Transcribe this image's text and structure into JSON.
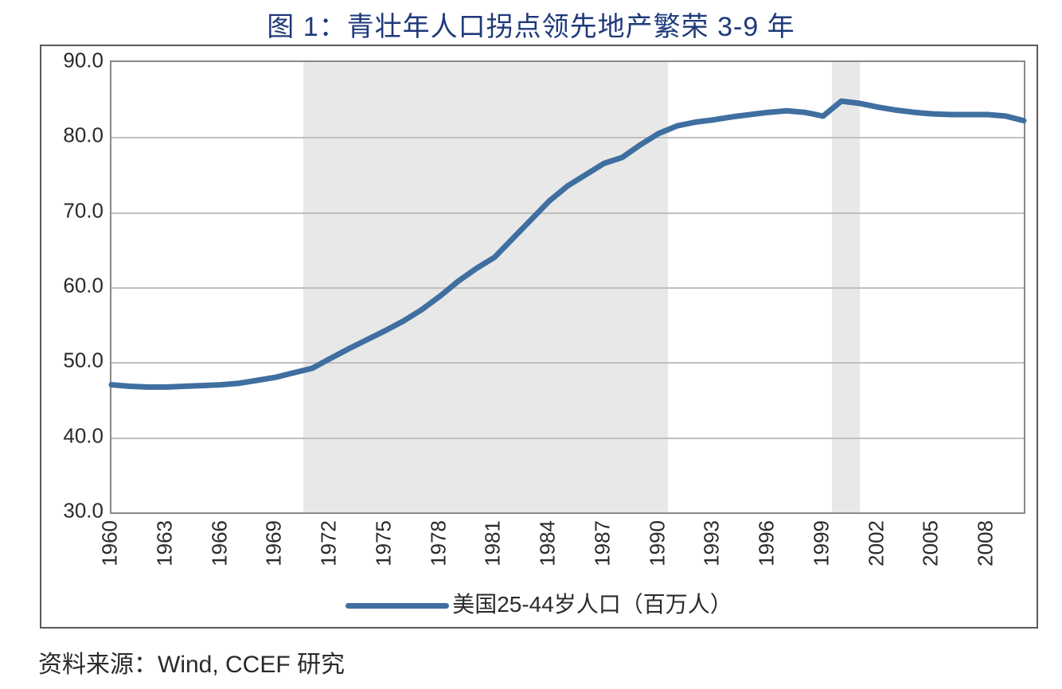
{
  "title": "图 1：青壮年人口拐点领先地产繁荣 3-9 年",
  "source": "资料来源：Wind, CCEF 研究",
  "chart": {
    "type": "line",
    "legend_label": "美国25-44岁人口（百万人）",
    "line_color": "#3f6fa0",
    "line_width": 7,
    "background_color": "#ffffff",
    "grid_color": "#bfbfbf",
    "frame_color": "#888888",
    "outer_frame_color": "#5a5a5a",
    "band_color": "#e6e6e6",
    "title_color": "#1f3a7a",
    "text_color": "#2a2a2a",
    "title_fontsize": 34,
    "tick_fontsize": 26,
    "legend_fontsize": 28,
    "ylim": [
      30.0,
      90.0
    ],
    "ytick_step": 10.0,
    "ytick_format": "fixed1",
    "x_start": 1960,
    "x_end": 2010,
    "xtick_step": 3,
    "xtick_last": 2008,
    "xtick_rotation_deg": -90,
    "shaded_bands": [
      {
        "from": 1970.5,
        "to": 1990.5
      },
      {
        "from": 1999.5,
        "to": 2001.0
      }
    ],
    "series": {
      "years": [
        1960,
        1961,
        1962,
        1963,
        1964,
        1965,
        1966,
        1967,
        1968,
        1969,
        1970,
        1971,
        1972,
        1973,
        1974,
        1975,
        1976,
        1977,
        1978,
        1979,
        1980,
        1981,
        1982,
        1983,
        1984,
        1985,
        1986,
        1987,
        1988,
        1989,
        1990,
        1991,
        1992,
        1993,
        1994,
        1995,
        1996,
        1997,
        1998,
        1999,
        2000,
        2001,
        2002,
        2003,
        2004,
        2005,
        2006,
        2007,
        2008,
        2009,
        2010
      ],
      "values": [
        47.0,
        46.8,
        46.7,
        46.7,
        46.8,
        46.9,
        47.0,
        47.2,
        47.6,
        48.0,
        48.6,
        49.2,
        50.5,
        51.8,
        53.0,
        54.2,
        55.5,
        57.0,
        58.8,
        60.8,
        62.5,
        64.0,
        66.5,
        69.0,
        71.5,
        73.5,
        75.0,
        76.5,
        77.3,
        79.0,
        80.5,
        81.5,
        82.0,
        82.3,
        82.7,
        83.0,
        83.3,
        83.5,
        83.3,
        82.8,
        84.8,
        84.5,
        84.0,
        83.6,
        83.3,
        83.1,
        83.0,
        83.0,
        83.0,
        82.8,
        82.2
      ]
    }
  }
}
